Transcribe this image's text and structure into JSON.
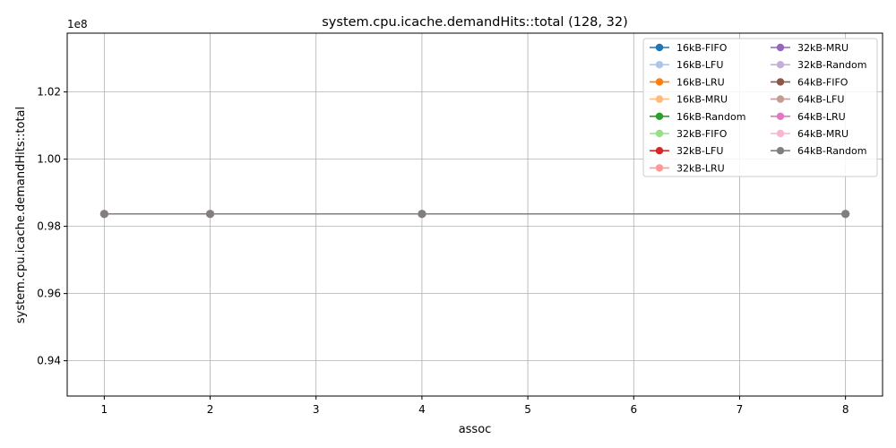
{
  "chart_data": {
    "type": "line",
    "title": "system.cpu.icache.demandHits::total (128, 32)",
    "xlabel": "assoc",
    "ylabel": "system.cpu.icache.demandHits::total",
    "y_offset_label": "1e8",
    "y_scale": 100000000,
    "xlim": [
      0.65,
      8.35
    ],
    "ylim": [
      92950000,
      103750000
    ],
    "x_ticks": [
      1,
      2,
      3,
      4,
      5,
      6,
      7,
      8
    ],
    "x_tick_labels": [
      "1",
      "2",
      "3",
      "4",
      "5",
      "6",
      "7",
      "8"
    ],
    "y_ticks": [
      94000000,
      96000000,
      98000000,
      100000000,
      102000000
    ],
    "y_tick_labels": [
      "0.94",
      "0.96",
      "0.98",
      "1.00",
      "1.02"
    ],
    "grid": true,
    "legend_placement": "top-right",
    "legend_columns": 2,
    "x": [
      1,
      2,
      4,
      8
    ],
    "series": [
      {
        "name": "16kB-FIFO",
        "color": "#1f77b4",
        "values": [
          98370000,
          98370000,
          98370000,
          98370000
        ]
      },
      {
        "name": "16kB-LFU",
        "color": "#aec7e8",
        "values": [
          98370000,
          98370000,
          98370000,
          98370000
        ]
      },
      {
        "name": "16kB-LRU",
        "color": "#ff7f0e",
        "values": [
          98370000,
          98370000,
          98370000,
          98370000
        ]
      },
      {
        "name": "16kB-MRU",
        "color": "#ffbb78",
        "values": [
          98370000,
          98370000,
          98370000,
          98370000
        ]
      },
      {
        "name": "16kB-Random",
        "color": "#2ca02c",
        "values": [
          98370000,
          98370000,
          98370000,
          98370000
        ]
      },
      {
        "name": "32kB-FIFO",
        "color": "#98df8a",
        "values": [
          98370000,
          98370000,
          98370000,
          98370000
        ]
      },
      {
        "name": "32kB-LFU",
        "color": "#d62728",
        "values": [
          98370000,
          98370000,
          98370000,
          98370000
        ]
      },
      {
        "name": "32kB-LRU",
        "color": "#ff9896",
        "values": [
          98370000,
          98370000,
          98370000,
          98370000
        ]
      },
      {
        "name": "32kB-MRU",
        "color": "#9467bd",
        "values": [
          98370000,
          98370000,
          98370000,
          98370000
        ]
      },
      {
        "name": "32kB-Random",
        "color": "#c5b0d5",
        "values": [
          98370000,
          98370000,
          98370000,
          98370000
        ]
      },
      {
        "name": "64kB-FIFO",
        "color": "#8c564b",
        "values": [
          98370000,
          98370000,
          98370000,
          98370000
        ]
      },
      {
        "name": "64kB-LFU",
        "color": "#c49c94",
        "values": [
          98370000,
          98370000,
          98370000,
          98370000
        ]
      },
      {
        "name": "64kB-LRU",
        "color": "#e377c2",
        "values": [
          98370000,
          98370000,
          98370000,
          98370000
        ]
      },
      {
        "name": "64kB-MRU",
        "color": "#f7b6d2",
        "values": [
          98370000,
          98370000,
          98370000,
          98370000
        ]
      },
      {
        "name": "64kB-Random",
        "color": "#7f7f7f",
        "values": [
          98370000,
          98370000,
          98370000,
          98370000
        ]
      }
    ]
  }
}
